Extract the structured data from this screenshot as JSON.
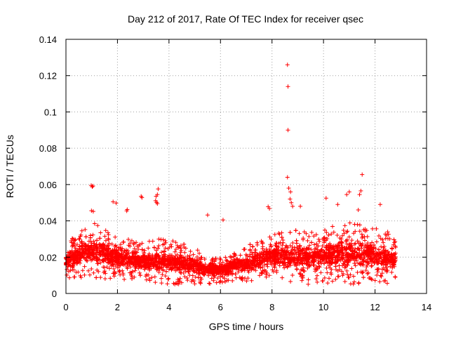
{
  "chart_data": {
    "type": "scatter",
    "title": "Day 212 of 2017, Rate Of TEC Index for receiver qsec",
    "xlabel": "GPS time / hours",
    "ylabel": "ROTI / TECUs",
    "xlim": [
      0,
      14
    ],
    "ylim": [
      0,
      0.14
    ],
    "xticks": [
      0,
      2,
      4,
      6,
      8,
      10,
      12,
      14
    ],
    "yticks": [
      0,
      0.02,
      0.04,
      0.06,
      0.08,
      0.1,
      0.12,
      0.14
    ],
    "xtick_labels": [
      "0",
      "2",
      "4",
      "6",
      "8",
      "10",
      "12",
      "14"
    ],
    "ytick_labels": [
      "0",
      "0.02",
      "0.04",
      "0.06",
      "0.08",
      "0.1",
      "0.12",
      "0.14"
    ],
    "grid": true,
    "marker": "+",
    "color": "#ff0000",
    "x_data_range": [
      0,
      12.8
    ],
    "band_profile": {
      "x": [
        0,
        0.5,
        1.0,
        1.5,
        2.0,
        2.5,
        3.0,
        3.5,
        4.0,
        4.5,
        5.0,
        5.5,
        6.0,
        6.5,
        7.0,
        7.5,
        8.0,
        8.5,
        9.0,
        9.5,
        10.0,
        10.5,
        11.0,
        11.5,
        12.0,
        12.5,
        12.8
      ],
      "typical_low": [
        0.008,
        0.008,
        0.009,
        0.008,
        0.008,
        0.007,
        0.007,
        0.006,
        0.005,
        0.005,
        0.005,
        0.005,
        0.006,
        0.006,
        0.006,
        0.007,
        0.01,
        0.006,
        0.005,
        0.005,
        0.006,
        0.005,
        0.005,
        0.005,
        0.005,
        0.005,
        0.006
      ],
      "typical_high": [
        0.028,
        0.033,
        0.04,
        0.035,
        0.032,
        0.03,
        0.028,
        0.03,
        0.03,
        0.028,
        0.025,
        0.022,
        0.02,
        0.024,
        0.026,
        0.03,
        0.032,
        0.035,
        0.035,
        0.034,
        0.036,
        0.038,
        0.04,
        0.038,
        0.036,
        0.034,
        0.03
      ]
    },
    "outliers": [
      {
        "x": 0.98,
        "y": 0.0595
      },
      {
        "x": 1.05,
        "y": 0.0592
      },
      {
        "x": 1.02,
        "y": 0.0588
      },
      {
        "x": 0.99,
        "y": 0.0456
      },
      {
        "x": 1.06,
        "y": 0.0452
      },
      {
        "x": 1.83,
        "y": 0.0505
      },
      {
        "x": 1.95,
        "y": 0.0498
      },
      {
        "x": 2.38,
        "y": 0.0462
      },
      {
        "x": 2.36,
        "y": 0.0455
      },
      {
        "x": 2.92,
        "y": 0.0535
      },
      {
        "x": 2.95,
        "y": 0.0528
      },
      {
        "x": 3.48,
        "y": 0.0511
      },
      {
        "x": 3.52,
        "y": 0.0502
      },
      {
        "x": 3.55,
        "y": 0.0495
      },
      {
        "x": 3.58,
        "y": 0.0576
      },
      {
        "x": 3.55,
        "y": 0.0545
      },
      {
        "x": 3.5,
        "y": 0.0535
      },
      {
        "x": 5.5,
        "y": 0.0432
      },
      {
        "x": 6.1,
        "y": 0.0405
      },
      {
        "x": 7.85,
        "y": 0.0478
      },
      {
        "x": 7.9,
        "y": 0.0468
      },
      {
        "x": 8.6,
        "y": 0.126
      },
      {
        "x": 8.62,
        "y": 0.114
      },
      {
        "x": 8.62,
        "y": 0.09
      },
      {
        "x": 8.6,
        "y": 0.064
      },
      {
        "x": 8.65,
        "y": 0.058
      },
      {
        "x": 8.72,
        "y": 0.056
      },
      {
        "x": 8.7,
        "y": 0.052
      },
      {
        "x": 8.75,
        "y": 0.05
      },
      {
        "x": 8.8,
        "y": 0.048
      },
      {
        "x": 9.1,
        "y": 0.048
      },
      {
        "x": 10.1,
        "y": 0.0525
      },
      {
        "x": 10.55,
        "y": 0.049
      },
      {
        "x": 10.9,
        "y": 0.0545
      },
      {
        "x": 11.0,
        "y": 0.056
      },
      {
        "x": 11.4,
        "y": 0.0545
      },
      {
        "x": 11.45,
        "y": 0.0565
      },
      {
        "x": 11.5,
        "y": 0.0655
      },
      {
        "x": 11.35,
        "y": 0.046
      },
      {
        "x": 12.2,
        "y": 0.049
      }
    ]
  }
}
